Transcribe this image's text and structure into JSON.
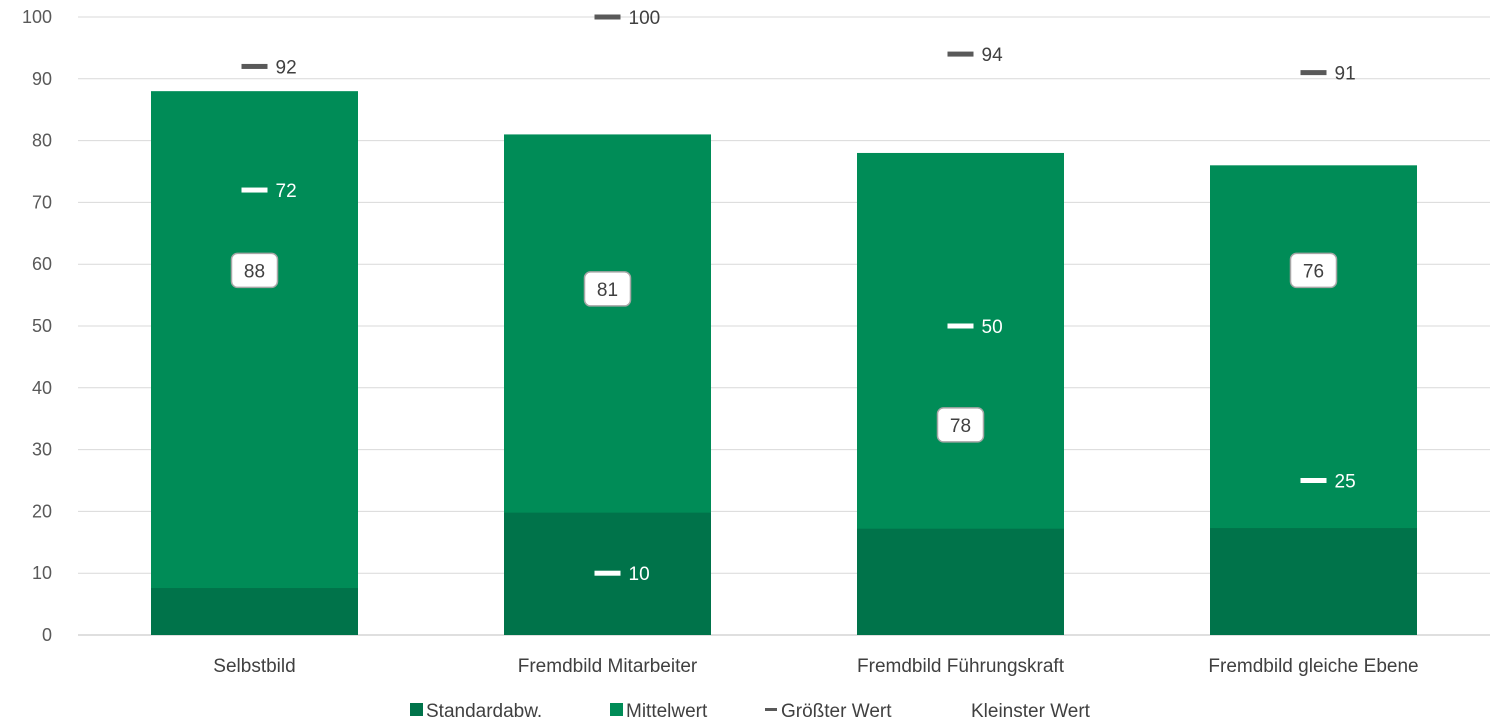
{
  "chart_data": {
    "type": "bar",
    "stacked": true,
    "categories": [
      "Selbstbild",
      "Fremdbild Mitarbeiter",
      "Fremdbild Führungskraft",
      "Fremdbild gleiche Ebene"
    ],
    "ylim": [
      0,
      100
    ],
    "yticks": [
      0,
      10,
      20,
      30,
      40,
      50,
      60,
      70,
      80,
      90,
      100
    ],
    "grid": true,
    "legend_position": "bottom",
    "series": [
      {
        "name": "Standardabw.",
        "kind": "bar-segment",
        "values": [
          7.6,
          19.8,
          17.2,
          17.3
        ],
        "color": "#00734a"
      },
      {
        "name": "Mittelwert",
        "kind": "bar-total",
        "values": [
          88,
          81,
          78,
          76
        ],
        "color": "#008c57"
      },
      {
        "name": "Größter Wert",
        "kind": "marker",
        "values": [
          92,
          100,
          94,
          91
        ],
        "color": "#595959"
      },
      {
        "name": "Kleinster Wert",
        "kind": "marker",
        "values": [
          72,
          10,
          50,
          25
        ],
        "color": "#ffffff"
      }
    ],
    "mean_label_positions": [
      59,
      56,
      34,
      59
    ]
  }
}
